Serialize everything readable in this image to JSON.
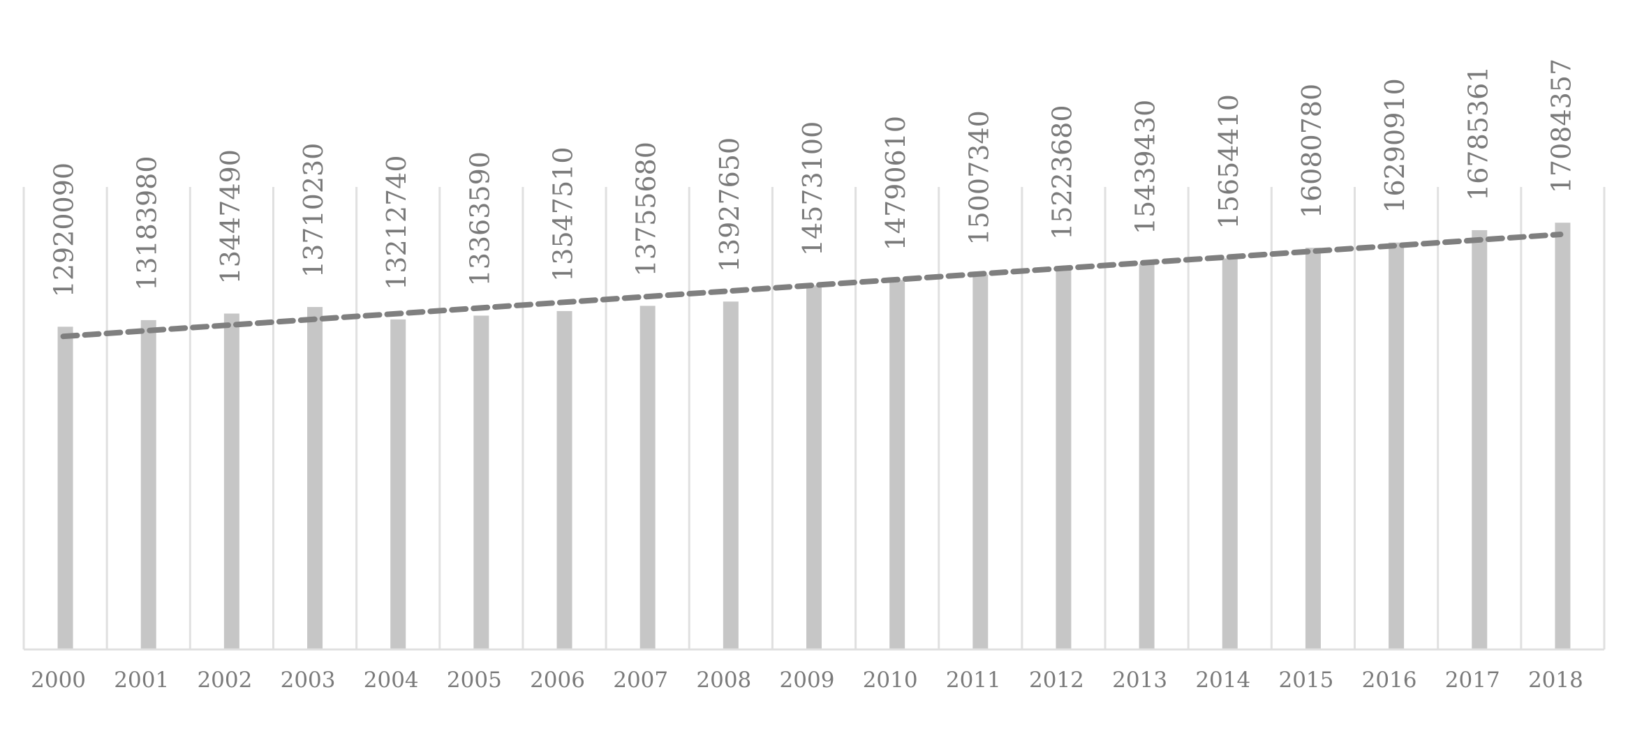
{
  "chart_data": {
    "type": "bar",
    "categories": [
      "2000",
      "2001",
      "2002",
      "2003",
      "2004",
      "2005",
      "2006",
      "2007",
      "2008",
      "2009",
      "2010",
      "2011",
      "2012",
      "2013",
      "2014",
      "2015",
      "2016",
      "2017",
      "2018"
    ],
    "series": [
      {
        "values": [
          12920090,
          13183980,
          13447490,
          13710230,
          13212740,
          13363590,
          13547510,
          13755680,
          13927650,
          14573100,
          14790610,
          15007340,
          15223680,
          15439430,
          15654410,
          16080780,
          16290910,
          16785361,
          17084357
        ],
        "data_labels": [
          "12920090",
          "13183980",
          "13447490",
          "13710230",
          "13212740",
          "13363590",
          "13547510",
          "13755680",
          "13927650",
          "14573100",
          "14790610",
          "15007340",
          "15223680",
          "15439430",
          "15654410",
          "16080780",
          "16290910",
          "16785361",
          "17084357"
        ]
      }
    ],
    "trendline": {
      "type": "linear",
      "style": "dashed"
    },
    "ylim": [
      0,
      26000000
    ],
    "xlabel": "",
    "ylabel": "",
    "grid": "vertical",
    "legend": "none",
    "colors": {
      "bar": "#c6c6c6",
      "trendline": "#7f7f7f",
      "grid": "#e0e0e0",
      "text": "#7a7a7a"
    }
  }
}
